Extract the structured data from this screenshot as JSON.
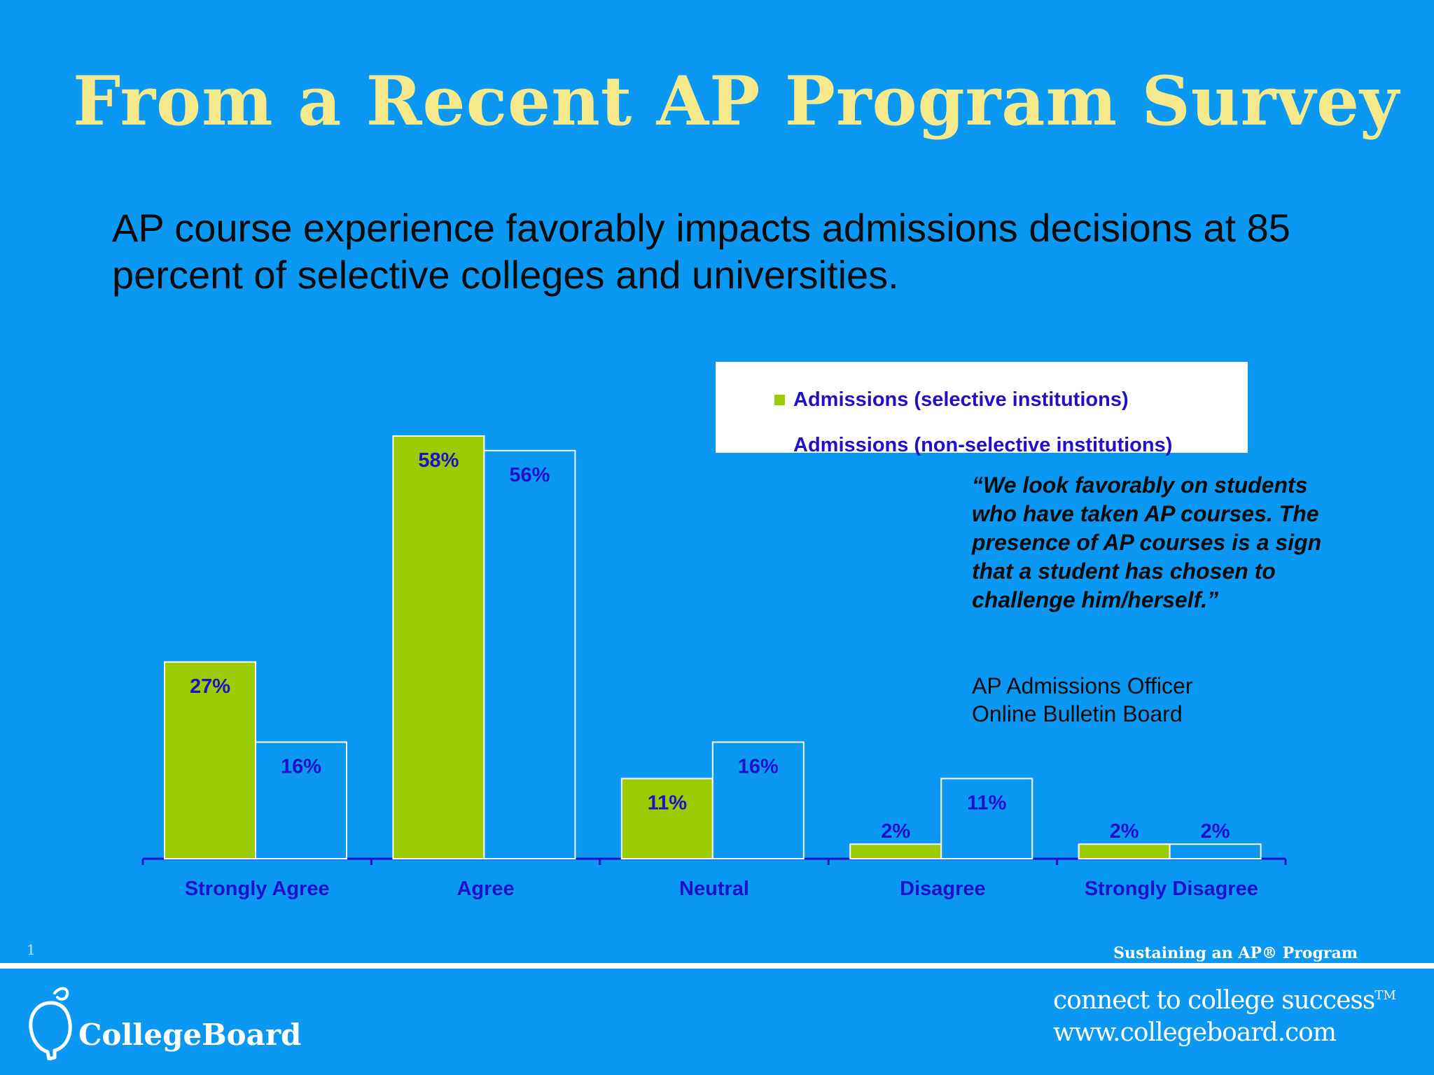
{
  "slide": {
    "title": "From a Recent AP Program Survey",
    "subtitle": "AP course experience favorably impacts admissions decisions at 85 percent of selective colleges and universities.",
    "quote": "“We look favorably on students who have taken AP courses. The presence of AP courses is a sign that a student has chosen to challenge him/herself.”",
    "attribution_line1": "AP Admissions Officer",
    "attribution_line2": "Online Bulletin Board",
    "page_number": "1",
    "program_tag": "Sustaining an AP® Program"
  },
  "footer": {
    "logo_text": "CollegeBoard",
    "tagline": "connect to college success",
    "tagline_mark": "TM",
    "website": "www.collegeboard.com"
  },
  "colors": {
    "background": "#0B98F2",
    "title": "#F6E98B",
    "series_selective": "#9BCB02",
    "series_non_selective": "#0B98F2",
    "label_text": "#2010C8"
  },
  "chart_data": {
    "type": "bar",
    "title": "",
    "xlabel": "",
    "ylabel": "",
    "categories": [
      "Strongly Agree",
      "Agree",
      "Neutral",
      "Disagree",
      "Strongly Disagree"
    ],
    "series": [
      {
        "name": "Admissions (selective institutions)",
        "values": [
          27,
          58,
          11,
          2,
          2
        ],
        "labels": [
          "27%",
          "58%",
          "11%",
          "2%",
          "2%"
        ]
      },
      {
        "name": "Admissions (non-selective institutions)",
        "values": [
          16,
          56,
          16,
          11,
          2
        ],
        "labels": [
          "16%",
          "56%",
          "16%",
          "11%",
          "2%"
        ]
      }
    ],
    "ylim": [
      0,
      58
    ],
    "grid": false,
    "legend_position": "top-right"
  }
}
